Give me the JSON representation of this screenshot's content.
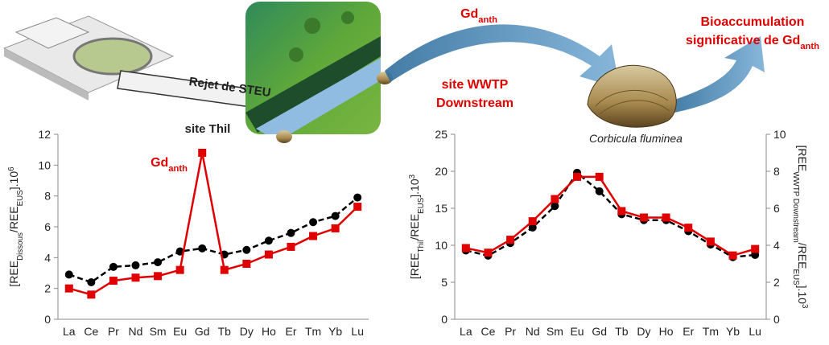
{
  "figure": {
    "pipe_label": "Rejet de STEU",
    "site_thil": "site Thil",
    "site_wwtp": [
      "site WWTP",
      "Downstream"
    ],
    "flow_label": [
      {
        "text": "Gd"
      },
      {
        "text": "anth",
        "sub": true
      }
    ],
    "species": "Corbicula fluminea",
    "conclusion_line1": "Bioaccumulation",
    "conclusion_line2": [
      {
        "text": "significative de Gd"
      },
      {
        "text": "anth",
        "sub": true
      }
    ]
  },
  "chart_data": [
    {
      "type": "line",
      "categories": [
        "La",
        "Ce",
        "Pr",
        "Nd",
        "Sm",
        "Eu",
        "Gd",
        "Tb",
        "Dy",
        "Ho",
        "Er",
        "Tm",
        "Yb",
        "Lu"
      ],
      "series": [
        {
          "color": "#000000",
          "marker": "circle",
          "dashed": true,
          "values": [
            2.9,
            2.4,
            3.4,
            3.5,
            3.7,
            4.4,
            4.6,
            4.2,
            4.5,
            5.1,
            5.6,
            6.3,
            6.7,
            7.9
          ]
        },
        {
          "color": "#e00000",
          "marker": "square",
          "dashed": false,
          "values": [
            2.0,
            1.6,
            2.5,
            2.7,
            2.8,
            3.2,
            10.8,
            3.2,
            3.6,
            4.2,
            4.7,
            5.4,
            5.9,
            7.3
          ]
        }
      ],
      "ylim": [
        0,
        12
      ],
      "yticks": [
        0,
        2,
        4,
        6,
        8,
        10,
        12
      ],
      "ylabel": [
        {
          "text": "[REE"
        },
        {
          "text": "Dissous",
          "sub": true
        },
        {
          "text": "/REE"
        },
        {
          "text": "EUS",
          "sub": true
        },
        {
          "text": "].10"
        },
        {
          "text": "6",
          "sup": true
        }
      ],
      "annotation": [
        {
          "text": "Gd"
        },
        {
          "text": "anth",
          "sub": true
        }
      ]
    },
    {
      "type": "line",
      "categories": [
        "La",
        "Ce",
        "Pr",
        "Nd",
        "Sm",
        "Eu",
        "Gd",
        "Tb",
        "Dy",
        "Ho",
        "Er",
        "Tm",
        "Yb",
        "Lu"
      ],
      "series": [
        {
          "color": "#000000",
          "marker": "circle",
          "dashed": true,
          "values": [
            9.3,
            8.6,
            10.3,
            12.4,
            15.3,
            19.8,
            17.3,
            14.2,
            13.4,
            13.4,
            11.9,
            10.1,
            8.4,
            8.7
          ]
        },
        {
          "color": "#e00000",
          "marker": "square",
          "dashed": false,
          "axis": "y2",
          "values": [
            3.85,
            3.6,
            4.3,
            5.3,
            6.5,
            7.7,
            7.7,
            5.85,
            5.5,
            5.5,
            4.95,
            4.2,
            3.45,
            3.8
          ]
        }
      ],
      "ylim": [
        0,
        25
      ],
      "yticks": [
        0,
        5,
        10,
        15,
        20,
        25
      ],
      "y2lim": [
        0,
        10
      ],
      "y2ticks": [
        0,
        2,
        4,
        6,
        8,
        10
      ],
      "ylabel": [
        {
          "text": "[REE"
        },
        {
          "text": "Thil",
          "sub": true
        },
        {
          "text": "/REE"
        },
        {
          "text": "EUS",
          "sub": true
        },
        {
          "text": "].10"
        },
        {
          "text": "3",
          "sup": true
        }
      ],
      "y2label": [
        {
          "text": "[REE"
        },
        {
          "text": "WWTP Downstream",
          "sub": true
        },
        {
          "text": "/REE"
        },
        {
          "text": "EUS",
          "sub": true
        },
        {
          "text": "].10"
        },
        {
          "text": "3",
          "sup": true
        }
      ]
    }
  ]
}
